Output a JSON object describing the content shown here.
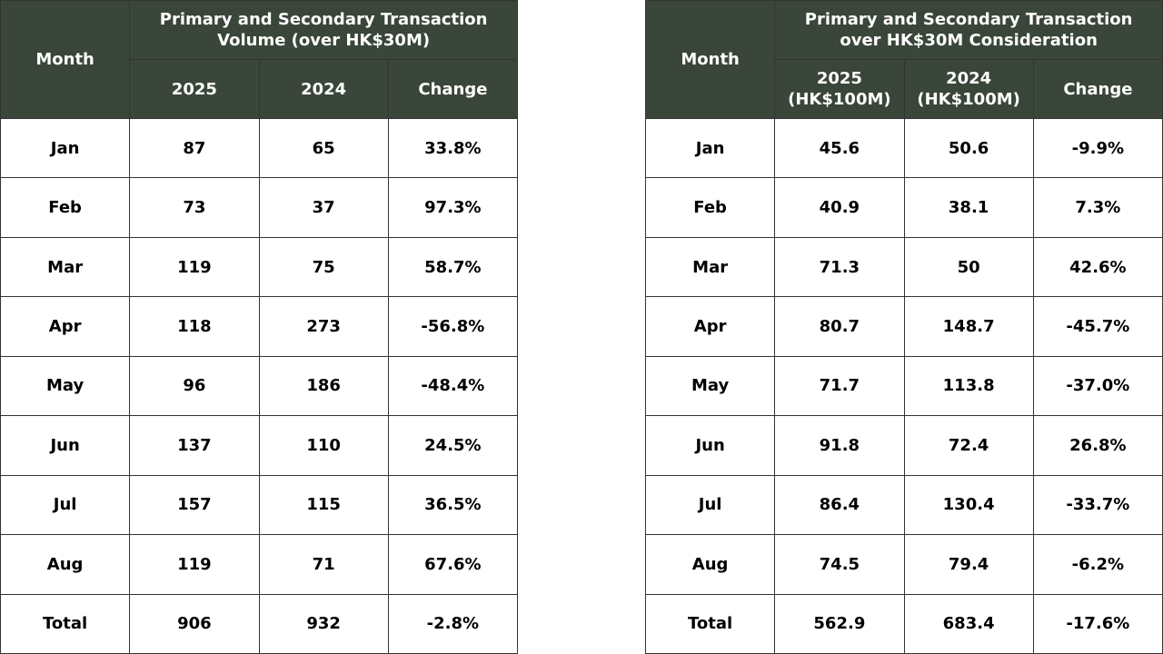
{
  "tables": [
    {
      "header": {
        "month": "Month",
        "group": "Primary and Secondary Transaction Volume (over HK$30M)",
        "columns": [
          "2025",
          "2024",
          "Change"
        ]
      },
      "rows": [
        [
          "Jan",
          "87",
          "65",
          "33.8%"
        ],
        [
          "Feb",
          "73",
          "37",
          "97.3%"
        ],
        [
          "Mar",
          "119",
          "75",
          "58.7%"
        ],
        [
          "Apr",
          "118",
          "273",
          "-56.8%"
        ],
        [
          "May",
          "96",
          "186",
          "-48.4%"
        ],
        [
          "Jun",
          "137",
          "110",
          "24.5%"
        ],
        [
          "Jul",
          "157",
          "115",
          "36.5%"
        ],
        [
          "Aug",
          "119",
          "71",
          "67.6%"
        ],
        [
          "Total",
          "906",
          "932",
          "-2.8%"
        ]
      ]
    },
    {
      "header": {
        "month": "Month",
        "group": "Primary and Secondary Transaction over HK$30M Consideration",
        "columns": [
          "2025 (HK$100M)",
          "2024 (HK$100M)",
          "Change"
        ]
      },
      "rows": [
        [
          "Jan",
          "45.6",
          "50.6",
          "-9.9%"
        ],
        [
          "Feb",
          "40.9",
          "38.1",
          "7.3%"
        ],
        [
          "Mar",
          "71.3",
          "50",
          "42.6%"
        ],
        [
          "Apr",
          "80.7",
          "148.7",
          "-45.7%"
        ],
        [
          "May",
          "71.7",
          "113.8",
          "-37.0%"
        ],
        [
          "Jun",
          "91.8",
          "72.4",
          "26.8%"
        ],
        [
          "Jul",
          "86.4",
          "130.4",
          "-33.7%"
        ],
        [
          "Aug",
          "74.5",
          "79.4",
          "-6.2%"
        ],
        [
          "Total",
          "562.9",
          "683.4",
          "-17.6%"
        ]
      ]
    }
  ]
}
